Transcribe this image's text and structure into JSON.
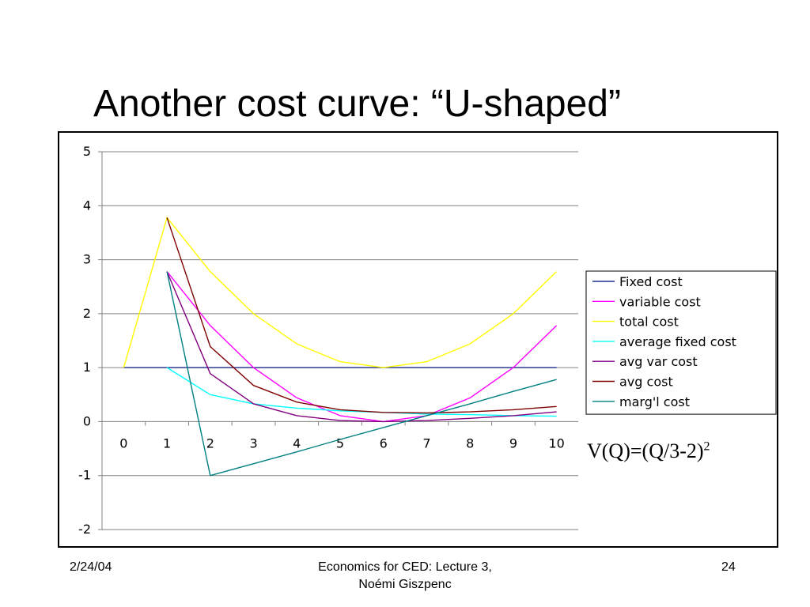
{
  "title": "Another cost curve: “U-shaped”",
  "formula": {
    "main": "V(Q)=(Q/3-2)",
    "exponent": "2"
  },
  "footer": {
    "date": "2/24/04",
    "center_line1": "Economics for CED: Lecture 3,",
    "center_line2": "Noémi Giszpenc",
    "page": "24"
  },
  "chart_data": {
    "type": "line",
    "title": "",
    "xlabel": "",
    "ylabel": "",
    "x": [
      0,
      1,
      2,
      3,
      4,
      5,
      6,
      7,
      8,
      9,
      10
    ],
    "ylim": [
      -2,
      5
    ],
    "yticks": [
      -2,
      -1,
      0,
      1,
      2,
      3,
      4,
      5
    ],
    "grid": true,
    "legend_position": "right",
    "series": [
      {
        "name": "Fixed cost",
        "color": "#1f2f8f",
        "values": [
          1,
          1,
          1,
          1,
          1,
          1,
          1,
          1,
          1,
          1,
          1
        ]
      },
      {
        "name": "variable cost",
        "color": "#ff00ff",
        "values": [
          null,
          2.78,
          1.78,
          1.0,
          0.44,
          0.11,
          0.0,
          0.11,
          0.44,
          1.0,
          1.78
        ]
      },
      {
        "name": "total cost",
        "color": "#ffff00",
        "values": [
          1.0,
          3.78,
          2.78,
          2.0,
          1.44,
          1.11,
          1.0,
          1.11,
          1.44,
          2.0,
          2.78
        ]
      },
      {
        "name": "average fixed cost",
        "color": "#00ffff",
        "values": [
          null,
          1.0,
          0.5,
          0.33,
          0.25,
          0.2,
          0.17,
          0.14,
          0.13,
          0.11,
          0.1
        ]
      },
      {
        "name": "avg var cost",
        "color": "#800080",
        "values": [
          null,
          2.78,
          0.89,
          0.33,
          0.11,
          0.02,
          0.0,
          0.02,
          0.06,
          0.11,
          0.18
        ]
      },
      {
        "name": "avg cost",
        "color": "#800000",
        "values": [
          null,
          3.78,
          1.39,
          0.67,
          0.36,
          0.22,
          0.17,
          0.16,
          0.18,
          0.22,
          0.28
        ]
      },
      {
        "name": "marg'l cost",
        "color": "#008080",
        "values": [
          null,
          2.78,
          -1.0,
          -0.78,
          -0.56,
          -0.33,
          -0.11,
          0.11,
          0.33,
          0.56,
          0.78
        ]
      }
    ]
  }
}
